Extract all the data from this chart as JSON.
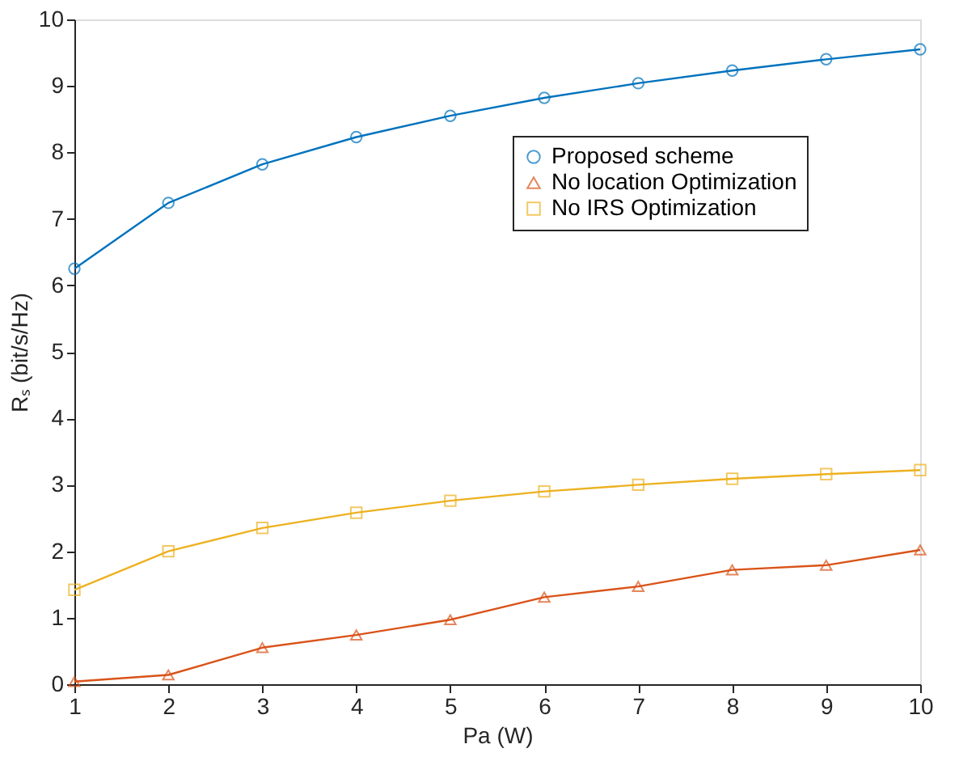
{
  "chart_data": {
    "type": "line",
    "xlabel": "Pa (W)",
    "ylabel": "Rₛ (bit/s/Hz)",
    "x": [
      1,
      2,
      3,
      4,
      5,
      6,
      7,
      8,
      9,
      10
    ],
    "series": [
      {
        "name": "Proposed scheme",
        "color": "#0072bd",
        "marker": "circle",
        "values": [
          6.25,
          7.24,
          7.82,
          8.23,
          8.55,
          8.82,
          9.04,
          9.23,
          9.4,
          9.55
        ]
      },
      {
        "name": "No location Optimization",
        "color": "#d95319",
        "marker": "triangle",
        "values": [
          0.04,
          0.14,
          0.55,
          0.74,
          0.97,
          1.31,
          1.47,
          1.72,
          1.79,
          2.02
        ]
      },
      {
        "name": "No IRS Optimization",
        "color": "#edb120",
        "marker": "square",
        "values": [
          1.42,
          2.0,
          2.35,
          2.58,
          2.76,
          2.9,
          3.0,
          3.09,
          3.16,
          3.22
        ]
      }
    ],
    "xlim": [
      1,
      10
    ],
    "xticks": [
      1,
      2,
      3,
      4,
      5,
      6,
      7,
      8,
      9,
      10
    ],
    "ylim": [
      0,
      10
    ],
    "yticks": [
      0,
      1,
      2,
      3,
      4,
      5,
      6,
      7,
      8,
      9,
      10
    ],
    "grid": false,
    "legend": "top right",
    "line_style": "solid"
  }
}
